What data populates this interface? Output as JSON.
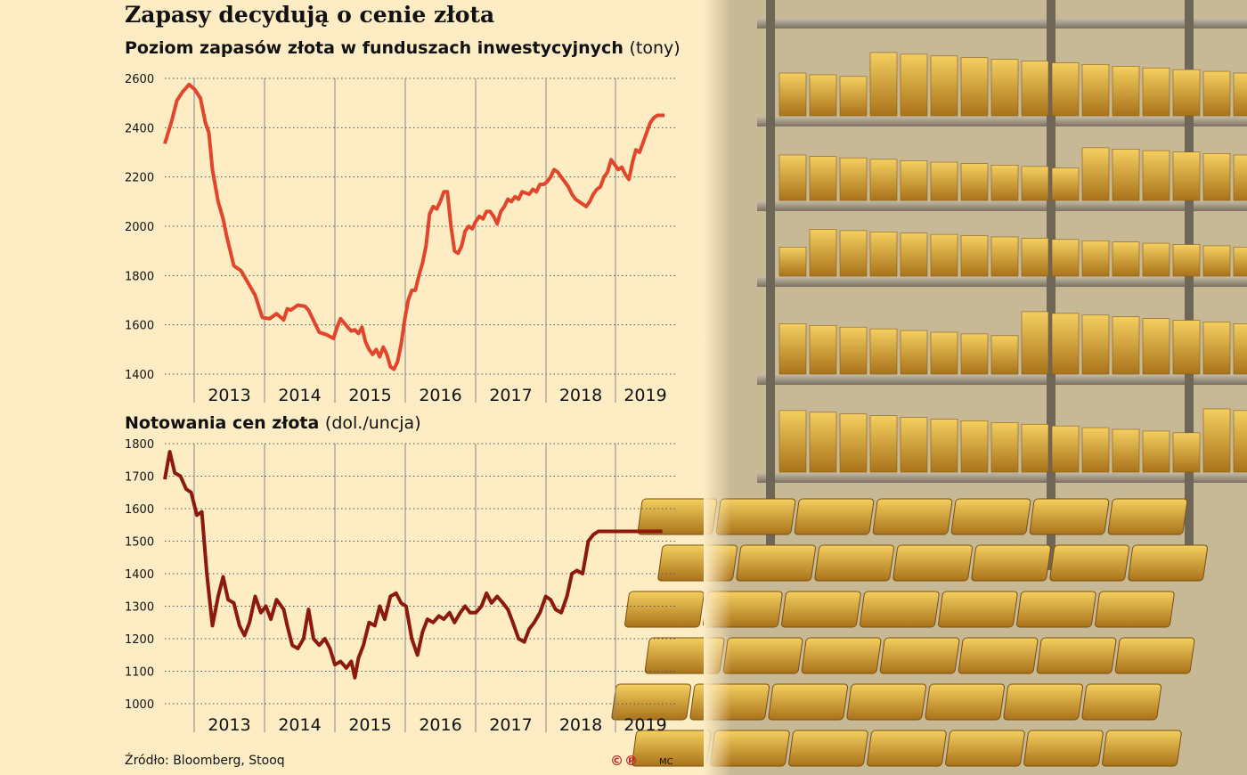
{
  "title": "Zapasy decydują o cenie złota",
  "source": "Źródło: Bloomberg, Stooq",
  "logo_text": "©℗",
  "author": "MC",
  "colors": {
    "background": "#fdecc4",
    "line_top": "#e2452b",
    "line_bottom": "#8c1a0c",
    "grid": "#555555"
  },
  "photo": {
    "description_icon": "gold-bars-vault-photo"
  },
  "chart_data": [
    {
      "type": "line",
      "title": "Poziom zapasów złota w funduszach inwestycyjnych",
      "unit": "(tony)",
      "ylim": [
        1400,
        2600
      ],
      "yticks": [
        1400,
        1600,
        1800,
        2000,
        2200,
        2400,
        2600
      ],
      "xlim": [
        2012.33,
        2019.5
      ],
      "xtick_labels": [
        "2013",
        "2014",
        "2015",
        "2016",
        "2017",
        "2018",
        "2019"
      ],
      "grid": true,
      "series": [
        {
          "x": [
            2012.33,
            2012.42,
            2012.5,
            2012.58,
            2012.67,
            2012.75,
            2012.83,
            2012.9,
            2012.95,
            2013.0,
            2013.08,
            2013.15,
            2013.2,
            2013.25,
            2013.3,
            2013.4,
            2013.5,
            2013.6,
            2013.7,
            2013.8,
            2013.9,
            2014.0,
            2014.05,
            2014.1,
            2014.2,
            2014.3,
            2014.35,
            2014.4,
            2014.5,
            2014.6,
            2014.7,
            2014.75,
            2014.8,
            2014.9,
            2014.95,
            2015.0,
            2015.05,
            2015.1,
            2015.15,
            2015.2,
            2015.25,
            2015.3,
            2015.35,
            2015.4,
            2015.45,
            2015.5,
            2015.55,
            2015.6,
            2015.65,
            2015.7,
            2015.75,
            2015.8,
            2015.85,
            2015.9,
            2015.95,
            2016.0,
            2016.05,
            2016.1,
            2016.15,
            2016.2,
            2016.25,
            2016.3,
            2016.35,
            2016.4,
            2016.45,
            2016.5,
            2016.55,
            2016.6,
            2016.65,
            2016.7,
            2016.75,
            2016.8,
            2016.85,
            2016.9,
            2016.95,
            2017.0,
            2017.05,
            2017.1,
            2017.15,
            2017.2,
            2017.25,
            2017.3,
            2017.35,
            2017.4,
            2017.45,
            2017.5,
            2017.55,
            2017.6,
            2017.65,
            2017.7,
            2017.75,
            2017.8,
            2017.85,
            2017.9,
            2017.95,
            2018.0,
            2018.05,
            2018.1,
            2018.15,
            2018.2,
            2018.25,
            2018.3,
            2018.35,
            2018.4,
            2018.45,
            2018.5,
            2018.55,
            2018.6,
            2018.65,
            2018.7,
            2018.75,
            2018.8,
            2018.85,
            2018.9,
            2018.95,
            2019.0,
            2019.05,
            2019.1,
            2019.15,
            2019.2,
            2019.25,
            2019.3,
            2019.35
          ],
          "y": [
            2335,
            2420,
            2510,
            2545,
            2575,
            2555,
            2520,
            2420,
            2380,
            2230,
            2100,
            2030,
            1960,
            1900,
            1840,
            1820,
            1770,
            1720,
            1630,
            1625,
            1645,
            1620,
            1665,
            1660,
            1680,
            1675,
            1660,
            1630,
            1570,
            1560,
            1545,
            1590,
            1625,
            1590,
            1575,
            1580,
            1565,
            1590,
            1530,
            1500,
            1480,
            1500,
            1470,
            1510,
            1480,
            1430,
            1420,
            1450,
            1520,
            1620,
            1700,
            1740,
            1740,
            1800,
            1850,
            1920,
            2050,
            2080,
            2070,
            2100,
            2140,
            2140,
            2000,
            1900,
            1890,
            1920,
            1980,
            2000,
            1990,
            2020,
            2040,
            2030,
            2060,
            2060,
            2040,
            2010,
            2060,
            2080,
            2110,
            2100,
            2120,
            2110,
            2140,
            2135,
            2130,
            2150,
            2140,
            2170,
            2170,
            2180,
            2200,
            2230,
            2220,
            2200,
            2180,
            2160,
            2130,
            2110,
            2100,
            2090,
            2080,
            2100,
            2130,
            2150,
            2160,
            2200,
            2220,
            2270,
            2250,
            2230,
            2240,
            2210,
            2190,
            2260,
            2310,
            2300,
            2340,
            2380,
            2420,
            2440,
            2450,
            2450,
            2450
          ]
        }
      ]
    },
    {
      "type": "line",
      "title": "Notowania cen złota",
      "unit": "(dol./uncja)",
      "ylim": [
        1000,
        1800
      ],
      "yticks": [
        1000,
        1100,
        1200,
        1300,
        1400,
        1500,
        1600,
        1700,
        1800
      ],
      "xlim": [
        2012.33,
        2019.5
      ],
      "xtick_labels": [
        "2013",
        "2014",
        "2015",
        "2016",
        "2017",
        "2018",
        "2019"
      ],
      "grid": true,
      "series": [
        {
          "x": [
            2012.33,
            2012.4,
            2012.47,
            2012.55,
            2012.63,
            2012.7,
            2012.78,
            2012.85,
            2012.92,
            2013.0,
            2013.08,
            2013.15,
            2013.22,
            2013.3,
            2013.38,
            2013.45,
            2013.52,
            2013.6,
            2013.68,
            2013.75,
            2013.82,
            2013.9,
            2014.0,
            2014.05,
            2014.12,
            2014.2,
            2014.28,
            2014.35,
            2014.42,
            2014.5,
            2014.58,
            2014.65,
            2014.72,
            2014.8,
            2014.88,
            2014.95,
            2015.0,
            2015.05,
            2015.12,
            2015.2,
            2015.28,
            2015.35,
            2015.42,
            2015.5,
            2015.58,
            2015.65,
            2015.72,
            2015.8,
            2015.88,
            2015.95,
            2016.02,
            2016.1,
            2016.18,
            2016.25,
            2016.33,
            2016.4,
            2016.48,
            2016.55,
            2016.62,
            2016.7,
            2016.78,
            2016.85,
            2016.92,
            2017.0,
            2017.08,
            2017.15,
            2017.22,
            2017.3,
            2017.38,
            2017.45,
            2017.52,
            2017.6,
            2017.68,
            2017.75,
            2017.82,
            2017.9,
            2017.98,
            2018.05,
            2018.12,
            2018.2,
            2018.28,
            2018.35,
            2018.42,
            2018.5,
            2018.58,
            2018.65,
            2018.72,
            2018.8,
            2018.88,
            2018.95,
            2019.02,
            2019.1,
            2019.18,
            2019.25,
            2019.32
          ],
          "y": [
            1690,
            1775,
            1710,
            1700,
            1660,
            1650,
            1580,
            1590,
            1400,
            1240,
            1330,
            1390,
            1320,
            1310,
            1240,
            1210,
            1250,
            1330,
            1280,
            1300,
            1260,
            1320,
            1290,
            1240,
            1180,
            1170,
            1200,
            1290,
            1200,
            1180,
            1200,
            1170,
            1120,
            1130,
            1110,
            1130,
            1080,
            1140,
            1180,
            1250,
            1240,
            1300,
            1260,
            1330,
            1340,
            1310,
            1300,
            1200,
            1150,
            1220,
            1260,
            1250,
            1270,
            1260,
            1280,
            1250,
            1280,
            1300,
            1280,
            1280,
            1300,
            1340,
            1310,
            1330,
            1310,
            1290,
            1250,
            1200,
            1190,
            1230,
            1250,
            1280,
            1330,
            1320,
            1290,
            1280,
            1330,
            1400,
            1410,
            1400,
            1500,
            1520,
            1530,
            1530,
            1530,
            1530,
            1530,
            1530,
            1530,
            1530,
            1530,
            1530,
            1530,
            1530,
            1530
          ]
        }
      ]
    }
  ]
}
